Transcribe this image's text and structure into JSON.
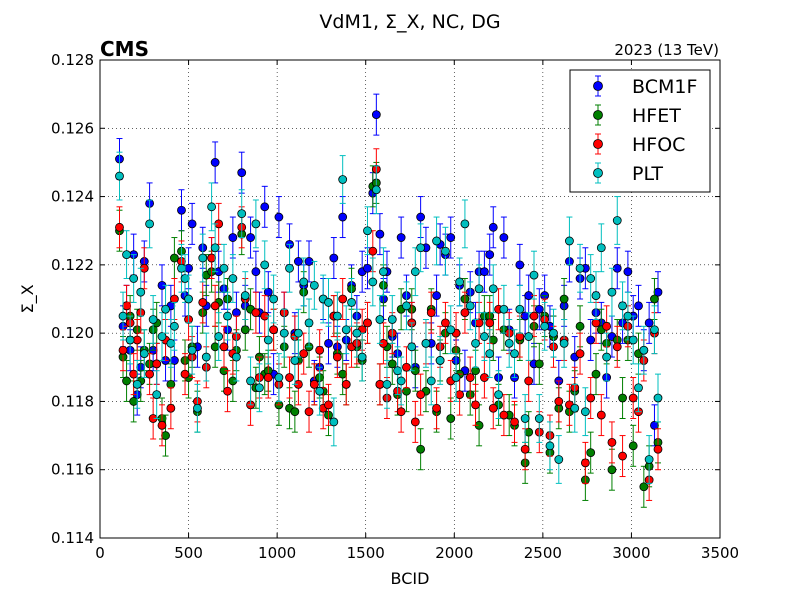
{
  "chart_data": {
    "type": "scatter",
    "title": "VdM1, Σ_X, NC, DG",
    "experiment_label": "CMS",
    "energy_label": "2023 (13 TeV)",
    "xlabel": "BCID",
    "ylabel": "Σ_X",
    "xlim": [
      0,
      3500
    ],
    "ylim": [
      0.114,
      0.128
    ],
    "xticks": [
      0,
      500,
      1000,
      1500,
      2000,
      2500,
      3000,
      3500
    ],
    "yticks": [
      0.114,
      0.116,
      0.118,
      0.12,
      0.122,
      0.124,
      0.126,
      0.128
    ],
    "xtick_labels": [
      "0",
      "500",
      "1000",
      "1500",
      "2000",
      "2500",
      "3000",
      "3500"
    ],
    "ytick_labels": [
      "0.114",
      "0.116",
      "0.118",
      "0.120",
      "0.122",
      "0.124",
      "0.126",
      "0.128"
    ],
    "grid": true,
    "legend_position": "top-right",
    "marker": "circle with error bars",
    "x": [
      110,
      130,
      150,
      170,
      190,
      210,
      230,
      250,
      280,
      300,
      320,
      350,
      370,
      400,
      420,
      460,
      480,
      500,
      520,
      550,
      580,
      600,
      630,
      650,
      670,
      700,
      720,
      750,
      770,
      800,
      820,
      850,
      880,
      900,
      930,
      950,
      980,
      1010,
      1040,
      1070,
      1100,
      1120,
      1150,
      1180,
      1210,
      1240,
      1260,
      1290,
      1320,
      1340,
      1370,
      1390,
      1420,
      1450,
      1480,
      1510,
      1540,
      1560,
      1580,
      1600,
      1620,
      1650,
      1680,
      1700,
      1730,
      1760,
      1780,
      1810,
      1840,
      1870,
      1900,
      1920,
      1950,
      1980,
      2010,
      2030,
      2060,
      2090,
      2120,
      2140,
      2170,
      2200,
      2220,
      2250,
      2280,
      2310,
      2340,
      2370,
      2400,
      2420,
      2450,
      2480,
      2510,
      2540,
      2560,
      2590,
      2620,
      2650,
      2680,
      2710,
      2740,
      2770,
      2800,
      2830,
      2860,
      2890,
      2920,
      2950,
      2980,
      3010,
      3040,
      3070,
      3100,
      3130,
      3150
    ],
    "series": [
      {
        "name": "BCM1F",
        "color": "#0000ff",
        "error": 0.0006,
        "values": [
          0.1251,
          0.1202,
          0.1208,
          0.1195,
          0.1223,
          0.1182,
          0.119,
          0.1221,
          0.1238,
          0.1195,
          0.1191,
          0.1214,
          0.1192,
          0.1208,
          0.1192,
          0.1236,
          0.1211,
          0.1219,
          0.1232,
          0.1196,
          0.1225,
          0.1208,
          0.1222,
          0.125,
          0.1218,
          0.1213,
          0.1201,
          0.1228,
          0.1206,
          0.1247,
          0.1208,
          0.1228,
          0.1218,
          0.1206,
          0.1237,
          0.1212,
          0.1188,
          0.1234,
          0.1206,
          0.1226,
          0.12,
          0.1221,
          0.1214,
          0.1221,
          0.1186,
          0.119,
          0.121,
          0.1197,
          0.1222,
          0.1196,
          0.1234,
          0.1198,
          0.1214,
          0.1205,
          0.1218,
          0.1219,
          0.1241,
          0.1264,
          0.1229,
          0.121,
          0.1218,
          0.1199,
          0.1194,
          0.1228,
          0.1211,
          0.1203,
          0.119,
          0.1234,
          0.1225,
          0.1197,
          0.1211,
          0.1226,
          0.1223,
          0.1228,
          0.1192,
          0.1214,
          0.1189,
          0.1212,
          0.1203,
          0.1218,
          0.1218,
          0.1223,
          0.1231,
          0.1187,
          0.1228,
          0.1201,
          0.1187,
          0.122,
          0.1205,
          0.1211,
          0.1191,
          0.1207,
          0.1211,
          0.1202,
          0.1199,
          0.1186,
          0.1208,
          0.1221,
          0.1193,
          0.1216,
          0.1219,
          0.1198,
          0.1206,
          0.1203,
          0.1187,
          0.1199,
          0.1219,
          0.1203,
          0.1218,
          0.1205,
          0.1208,
          0.1195,
          0.1203,
          0.1173,
          0.1212
        ]
      },
      {
        "name": "HFET",
        "color": "#007f00",
        "error": 0.0006,
        "values": [
          0.123,
          0.1193,
          0.1186,
          0.1205,
          0.118,
          0.1201,
          0.1186,
          0.1195,
          0.1191,
          0.1201,
          0.1203,
          0.1175,
          0.117,
          0.1185,
          0.1222,
          0.1224,
          0.1192,
          0.1187,
          0.1196,
          0.1177,
          0.1206,
          0.1217,
          0.1218,
          0.1196,
          0.1209,
          0.1189,
          0.121,
          0.1186,
          0.1195,
          0.1229,
          0.1201,
          0.1207,
          0.1184,
          0.1193,
          0.1188,
          0.1189,
          0.1201,
          0.1179,
          0.1196,
          0.1178,
          0.1177,
          0.1192,
          0.1212,
          0.1196,
          0.1185,
          0.1187,
          0.1183,
          0.1176,
          0.1205,
          0.1194,
          0.1188,
          0.1185,
          0.1213,
          0.1196,
          0.1192,
          0.1203,
          0.1243,
          0.1244,
          0.1185,
          0.1214,
          0.1196,
          0.1191,
          0.1182,
          0.1207,
          0.1183,
          0.1207,
          0.1189,
          0.1166,
          0.1183,
          0.1207,
          0.1177,
          0.1192,
          0.12,
          0.1175,
          0.1195,
          0.1188,
          0.121,
          0.1182,
          0.1189,
          0.1173,
          0.1205,
          0.1205,
          0.1198,
          0.1179,
          0.1201,
          0.1176,
          0.1173,
          0.1198,
          0.1162,
          0.1171,
          0.1202,
          0.1191,
          0.1205,
          0.1165,
          0.1199,
          0.1178,
          0.121,
          0.1177,
          0.1183,
          0.1202,
          0.1157,
          0.1165,
          0.1188,
          0.1201,
          0.1197,
          0.116,
          0.1198,
          0.1181,
          0.1198,
          0.1167,
          0.1194,
          0.1155,
          0.1161,
          0.121,
          0.1168
        ]
      },
      {
        "name": "HFOC",
        "color": "#ff0000",
        "error": 0.0006,
        "values": [
          0.1231,
          0.1195,
          0.1208,
          0.1203,
          0.1188,
          0.1198,
          0.1206,
          0.1219,
          0.1188,
          0.1175,
          0.1191,
          0.1173,
          0.1198,
          0.1178,
          0.121,
          0.1221,
          0.1188,
          0.1204,
          0.1193,
          0.118,
          0.1209,
          0.119,
          0.1222,
          0.1208,
          0.1232,
          0.1196,
          0.1183,
          0.1194,
          0.1199,
          0.1231,
          0.121,
          0.1179,
          0.1206,
          0.1187,
          0.1205,
          0.1187,
          0.1201,
          0.1185,
          0.1206,
          0.1187,
          0.1199,
          0.1185,
          0.1194,
          0.1177,
          0.1185,
          0.1195,
          0.1178,
          0.1179,
          0.1205,
          0.1193,
          0.121,
          0.1185,
          0.1196,
          0.1197,
          0.1201,
          0.1203,
          0.1224,
          0.1248,
          0.1185,
          0.1197,
          0.1181,
          0.12,
          0.1183,
          0.1177,
          0.119,
          0.1203,
          0.1174,
          0.1182,
          0.1197,
          0.1206,
          0.1178,
          0.1196,
          0.1203,
          0.1186,
          0.12,
          0.1182,
          0.1206,
          0.1187,
          0.1179,
          0.1203,
          0.1187,
          0.1203,
          0.1178,
          0.1207,
          0.1176,
          0.12,
          0.1174,
          0.1199,
          0.1166,
          0.1186,
          0.1205,
          0.1171,
          0.1204,
          0.117,
          0.1196,
          0.118,
          0.1198,
          0.1179,
          0.1184,
          0.1194,
          0.1162,
          0.1181,
          0.1203,
          0.1176,
          0.1202,
          0.1168,
          0.1196,
          0.1164,
          0.1202,
          0.1181,
          0.1177,
          0.1192,
          0.1157,
          0.12,
          0.1166
        ]
      },
      {
        "name": "PLT",
        "color": "#00bfbf",
        "error": 0.0007,
        "values": [
          0.1246,
          0.1205,
          0.1223,
          0.1198,
          0.1216,
          0.1185,
          0.1212,
          0.1194,
          0.1232,
          0.1204,
          0.1182,
          0.1199,
          0.1207,
          0.1197,
          0.1202,
          0.1219,
          0.1216,
          0.121,
          0.1195,
          0.1178,
          0.1222,
          0.1193,
          0.1237,
          0.1225,
          0.1199,
          0.1219,
          0.1205,
          0.1216,
          0.1193,
          0.1235,
          0.1211,
          0.1186,
          0.1232,
          0.1184,
          0.122,
          0.1198,
          0.121,
          0.1187,
          0.12,
          0.1219,
          0.1192,
          0.12,
          0.1215,
          0.1203,
          0.1214,
          0.1183,
          0.121,
          0.1209,
          0.1174,
          0.1205,
          0.1245,
          0.1201,
          0.1209,
          0.12,
          0.1193,
          0.123,
          0.1215,
          0.1242,
          0.1204,
          0.1218,
          0.1185,
          0.1204,
          0.1189,
          0.1186,
          0.1208,
          0.1196,
          0.1218,
          0.1225,
          0.1197,
          0.1186,
          0.1227,
          0.1192,
          0.1224,
          0.1201,
          0.1187,
          0.1215,
          0.1232,
          0.1208,
          0.1197,
          0.1213,
          0.1199,
          0.1194,
          0.1213,
          0.1182,
          0.1207,
          0.1197,
          0.1194,
          0.1207,
          0.1175,
          0.1199,
          0.1217,
          0.1175,
          0.1202,
          0.1167,
          0.12,
          0.1163,
          0.1197,
          0.1227,
          0.1178,
          0.1219,
          0.1177,
          0.1216,
          0.1211,
          0.1225,
          0.1193,
          0.1212,
          0.1233,
          0.1208,
          0.1205,
          0.1198,
          0.1184,
          0.1195,
          0.1163,
          0.1201,
          0.1181
        ]
      }
    ]
  }
}
